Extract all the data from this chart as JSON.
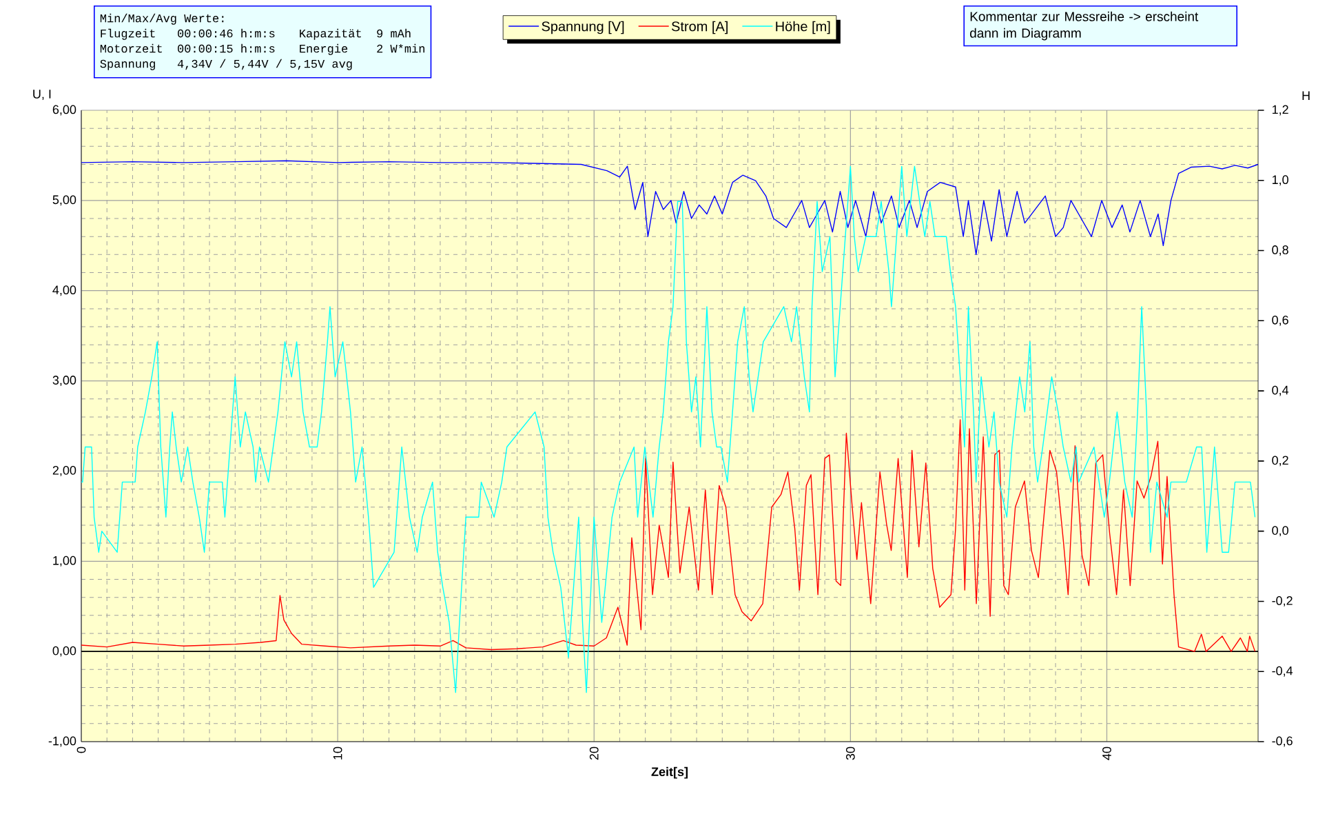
{
  "chart_data": {
    "type": "line",
    "xlabel": "Zeit[s]",
    "ylabel": "U, I",
    "y2label": "H",
    "xlim": [
      0,
      45.9
    ],
    "xticks": [
      0,
      10,
      20,
      30,
      40
    ],
    "ylim": [
      -1,
      6
    ],
    "yticks": [
      {
        "value": -1,
        "label": "-1,00"
      },
      {
        "value": 0,
        "label": "0,00"
      },
      {
        "value": 1,
        "label": "1,00"
      },
      {
        "value": 2,
        "label": "2,00"
      },
      {
        "value": 3,
        "label": "3,00"
      },
      {
        "value": 4,
        "label": "4,00"
      },
      {
        "value": 5,
        "label": "5,00"
      },
      {
        "value": 6,
        "label": "6,00"
      }
    ],
    "y2lim": [
      -0.6,
      1.2
    ],
    "y2ticks": [
      {
        "value": -0.6,
        "label": "-0,6"
      },
      {
        "value": -0.4,
        "label": "-0,4"
      },
      {
        "value": -0.2,
        "label": "-0,2"
      },
      {
        "value": 0,
        "label": "0,0"
      },
      {
        "value": 0.2,
        "label": "0,2"
      },
      {
        "value": 0.4,
        "label": "0,4"
      },
      {
        "value": 0.6,
        "label": "0,6"
      },
      {
        "value": 0.8,
        "label": "0,8"
      },
      {
        "value": 1.0,
        "label": "1,0"
      },
      {
        "value": 1.2,
        "label": "1,2"
      }
    ],
    "grid": true,
    "legend": "top",
    "ref_lines": [
      {
        "axis": "y",
        "value": 0,
        "color": "#000000"
      }
    ],
    "annotations": [
      "Min/Max/Avg Werte:",
      "Flugzeit",
      "00:00:46",
      "h:m:s",
      "Motorzeit",
      "00:00:15",
      "h:m:s",
      "Kapazität",
      "9 mAh",
      "Energie",
      "2 W*min",
      "Spannung",
      "4,34V / 5,44V",
      "/ 5,15V avg",
      "Kommentar zur Messreihe -> erscheint dann im Diagramm"
    ],
    "series": [
      {
        "name": "Spannung [V]",
        "color": "#0000ff",
        "x": [
          0,
          2,
          4,
          6,
          8,
          10,
          12,
          14,
          16,
          18,
          19.5,
          20.5,
          21,
          21.3,
          21.6,
          21.9,
          22.1,
          22.4,
          22.7,
          23,
          23.2,
          23.5,
          23.8,
          24.1,
          24.4,
          24.7,
          25,
          25.4,
          25.8,
          26.3,
          26.7,
          27,
          27.5,
          27.8,
          28.1,
          28.4,
          28.7,
          29,
          29.3,
          29.6,
          29.9,
          30.2,
          30.6,
          30.9,
          31.2,
          31.6,
          31.9,
          32.3,
          32.6,
          33.0,
          33.5,
          34.1,
          34.4,
          34.6,
          34.9,
          35.2,
          35.5,
          35.8,
          36.1,
          36.5,
          36.8,
          37.2,
          37.6,
          38.0,
          38.3,
          38.6,
          39.0,
          39.4,
          39.8,
          40.2,
          40.6,
          40.9,
          41.3,
          41.7,
          42.0,
          42.2,
          42.5,
          42.8,
          43.3,
          44,
          44.5,
          45,
          45.5,
          45.9
        ],
        "values": [
          5.42,
          5.43,
          5.42,
          5.43,
          5.44,
          5.42,
          5.43,
          5.42,
          5.42,
          5.41,
          5.4,
          5.33,
          5.26,
          5.38,
          4.9,
          5.2,
          4.6,
          5.1,
          4.9,
          5.0,
          4.75,
          5.1,
          4.8,
          4.95,
          4.85,
          5.05,
          4.85,
          5.2,
          5.28,
          5.22,
          5.05,
          4.8,
          4.7,
          4.85,
          5.0,
          4.7,
          4.85,
          5.0,
          4.65,
          5.1,
          4.7,
          5.0,
          4.6,
          5.1,
          4.75,
          5.05,
          4.7,
          5.0,
          4.7,
          5.1,
          5.2,
          5.15,
          4.6,
          5.0,
          4.4,
          5.0,
          4.55,
          5.12,
          4.6,
          5.1,
          4.75,
          4.9,
          5.05,
          4.6,
          4.7,
          5.0,
          4.8,
          4.6,
          5.0,
          4.7,
          4.95,
          4.65,
          5.0,
          4.6,
          4.85,
          4.5,
          5.0,
          5.3,
          5.37,
          5.38,
          5.35,
          5.39,
          5.36,
          5.4
        ]
      },
      {
        "name": "Strom [A]",
        "color": "#ff0000",
        "x": [
          0,
          1,
          2,
          3,
          4,
          5,
          6,
          7,
          7.6,
          7.75,
          7.9,
          8.2,
          8.6,
          9.5,
          10.5,
          12,
          13,
          14,
          14.5,
          15,
          16,
          17,
          18,
          18.8,
          19.3,
          20,
          20.48,
          20.93,
          21.29,
          21.47,
          21.83,
          22.01,
          22.28,
          22.54,
          22.9,
          23.08,
          23.35,
          23.71,
          24.07,
          24.34,
          24.61,
          24.88,
          25.14,
          25.5,
          25.77,
          26.13,
          26.58,
          26.93,
          27.29,
          27.56,
          27.83,
          28.01,
          28.28,
          28.46,
          28.73,
          29.0,
          29.18,
          29.44,
          29.62,
          29.84,
          30.07,
          30.25,
          30.43,
          30.79,
          31.15,
          31.41,
          31.59,
          31.86,
          32.22,
          32.4,
          32.67,
          32.94,
          33.21,
          33.48,
          33.92,
          34.1,
          34.28,
          34.46,
          34.64,
          34.91,
          35.18,
          35.45,
          35.63,
          35.81,
          35.98,
          36.16,
          36.43,
          36.79,
          37.06,
          37.33,
          37.78,
          38.04,
          38.31,
          38.49,
          38.76,
          39.03,
          39.3,
          39.57,
          39.84,
          40.11,
          40.38,
          40.65,
          40.91,
          41.18,
          41.45,
          41.72,
          41.99,
          42.17,
          42.35,
          42.62,
          42.8,
          43.42,
          43.69,
          43.87,
          44.5,
          44.85,
          45.21,
          45.48,
          45.57,
          45.78
        ],
        "values": [
          0.07,
          0.05,
          0.1,
          0.08,
          0.06,
          0.07,
          0.08,
          0.1,
          0.12,
          0.62,
          0.35,
          0.2,
          0.08,
          0.06,
          0.04,
          0.06,
          0.07,
          0.06,
          0.12,
          0.04,
          0.02,
          0.03,
          0.05,
          0.12,
          0.07,
          0.06,
          0.15,
          0.49,
          0.07,
          1.26,
          0.24,
          2.14,
          0.63,
          1.4,
          0.82,
          2.1,
          0.87,
          1.6,
          0.68,
          1.79,
          0.63,
          1.84,
          1.6,
          0.63,
          0.44,
          0.34,
          0.53,
          1.6,
          1.74,
          1.99,
          1.36,
          0.68,
          1.84,
          1.96,
          0.63,
          2.14,
          2.18,
          0.78,
          0.73,
          2.42,
          1.6,
          1.02,
          1.65,
          0.53,
          1.99,
          1.41,
          1.12,
          2.14,
          0.82,
          2.23,
          1.16,
          2.09,
          0.92,
          0.49,
          0.63,
          1.36,
          2.57,
          0.68,
          2.47,
          0.53,
          2.38,
          0.39,
          2.18,
          2.23,
          0.73,
          0.63,
          1.6,
          1.89,
          1.12,
          0.82,
          2.23,
          1.99,
          1.21,
          0.63,
          2.28,
          1.07,
          0.73,
          2.09,
          2.18,
          1.31,
          0.63,
          1.79,
          0.73,
          1.89,
          1.7,
          1.94,
          2.33,
          0.97,
          1.94,
          0.63,
          0.05,
          0,
          0.19,
          0,
          0.17,
          0,
          0.15,
          0,
          0.17,
          0
        ]
      },
      {
        "name": "Höhe [m]",
        "color": "#00ffff",
        "axis": "y2",
        "x": [
          0,
          0.05,
          0.15,
          0.4,
          0.5,
          0.68,
          0.8,
          1.4,
          1.6,
          2.1,
          2.2,
          2.5,
          2.75,
          2.96,
          3.1,
          3.3,
          3.45,
          3.55,
          3.7,
          3.9,
          4.15,
          4.35,
          4.6,
          4.8,
          5.0,
          5.5,
          5.6,
          5.8,
          6.0,
          6.2,
          6.4,
          6.7,
          6.8,
          6.95,
          7.3,
          7.67,
          7.94,
          8.2,
          8.4,
          8.65,
          8.9,
          9.2,
          9.37,
          9.6,
          9.7,
          9.9,
          10.2,
          10.5,
          10.7,
          10.95,
          11.2,
          11.4,
          12.2,
          12.4,
          12.5,
          12.8,
          13.1,
          13.3,
          13.7,
          13.9,
          14.1,
          14.35,
          14.6,
          14.75,
          15.0,
          15.5,
          15.6,
          16.1,
          16.4,
          16.6,
          17.7,
          18.05,
          18.2,
          18.4,
          18.7,
          19.0,
          19.4,
          19.55,
          19.7,
          20.0,
          20.3,
          20.7,
          21.0,
          21.56,
          21.7,
          21.98,
          22.3,
          22.54,
          22.7,
          22.9,
          23.08,
          23.26,
          23.44,
          23.6,
          23.8,
          23.97,
          24.15,
          24.4,
          24.6,
          24.78,
          24.95,
          25.2,
          25.4,
          25.6,
          25.86,
          26.05,
          26.2,
          26.4,
          26.6,
          27.4,
          27.7,
          27.9,
          28.2,
          28.4,
          28.5,
          28.7,
          28.9,
          29.2,
          29.4,
          29.6,
          29.8,
          30.0,
          30.15,
          30.3,
          30.6,
          31.0,
          31.2,
          31.5,
          31.6,
          31.8,
          32.0,
          32.2,
          32.5,
          32.7,
          32.9,
          33.1,
          33.3,
          33.74,
          33.9,
          34.1,
          34.28,
          34.45,
          34.6,
          34.8,
          34.9,
          35.1,
          35.4,
          35.6,
          35.8,
          36.1,
          36.3,
          36.6,
          36.8,
          37.0,
          37.15,
          37.3,
          37.5,
          37.85,
          38.1,
          38.3,
          38.6,
          38.8,
          38.9,
          39.5,
          39.9,
          40.1,
          40.4,
          40.7,
          40.99,
          41.2,
          41.36,
          41.55,
          41.7,
          41.95,
          42.35,
          42.5,
          42.9,
          43.1,
          43.5,
          43.7,
          43.9,
          44.2,
          44.5,
          44.75,
          45.0,
          45.6,
          45.78
        ],
        "values": [
          0.14,
          0.14,
          0.24,
          0.24,
          0.04,
          -0.06,
          0.0,
          -0.06,
          0.14,
          0.14,
          0.24,
          0.34,
          0.44,
          0.54,
          0.24,
          0.04,
          0.24,
          0.34,
          0.24,
          0.14,
          0.24,
          0.14,
          0.04,
          -0.06,
          0.14,
          0.14,
          0.04,
          0.24,
          0.44,
          0.24,
          0.34,
          0.24,
          0.14,
          0.24,
          0.14,
          0.34,
          0.54,
          0.44,
          0.54,
          0.34,
          0.24,
          0.24,
          0.34,
          0.54,
          0.64,
          0.44,
          0.54,
          0.34,
          0.14,
          0.24,
          0.04,
          -0.16,
          -0.06,
          0.14,
          0.24,
          0.04,
          -0.06,
          0.04,
          0.14,
          -0.06,
          -0.16,
          -0.26,
          -0.46,
          -0.26,
          0.04,
          0.04,
          0.14,
          0.04,
          0.14,
          0.24,
          0.34,
          0.24,
          0.04,
          -0.06,
          -0.16,
          -0.36,
          0.04,
          -0.26,
          -0.46,
          0.04,
          -0.26,
          0.04,
          0.14,
          0.24,
          0.04,
          0.24,
          0.04,
          0.24,
          0.34,
          0.54,
          0.64,
          0.94,
          0.94,
          0.54,
          0.34,
          0.44,
          0.24,
          0.64,
          0.34,
          0.24,
          0.24,
          0.14,
          0.34,
          0.54,
          0.64,
          0.44,
          0.34,
          0.44,
          0.54,
          0.64,
          0.54,
          0.64,
          0.44,
          0.34,
          0.64,
          0.94,
          0.74,
          0.84,
          0.44,
          0.64,
          0.84,
          1.04,
          0.84,
          0.74,
          0.84,
          0.84,
          0.94,
          0.74,
          0.64,
          0.84,
          1.04,
          0.84,
          1.04,
          0.94,
          0.84,
          0.94,
          0.84,
          0.84,
          0.74,
          0.64,
          0.44,
          0.24,
          0.64,
          0.34,
          0.14,
          0.44,
          0.24,
          0.34,
          0.14,
          0.04,
          0.24,
          0.44,
          0.34,
          0.54,
          0.24,
          0.14,
          0.24,
          0.44,
          0.34,
          0.24,
          0.14,
          0.24,
          0.14,
          0.24,
          0.04,
          0.14,
          0.34,
          0.14,
          0.04,
          0.34,
          0.64,
          0.34,
          -0.06,
          0.14,
          0.04,
          0.14,
          0.14,
          0.14,
          0.24,
          0.24,
          -0.06,
          0.24,
          -0.06,
          -0.06,
          0.14,
          0.14,
          0.04
        ]
      }
    ]
  }
}
